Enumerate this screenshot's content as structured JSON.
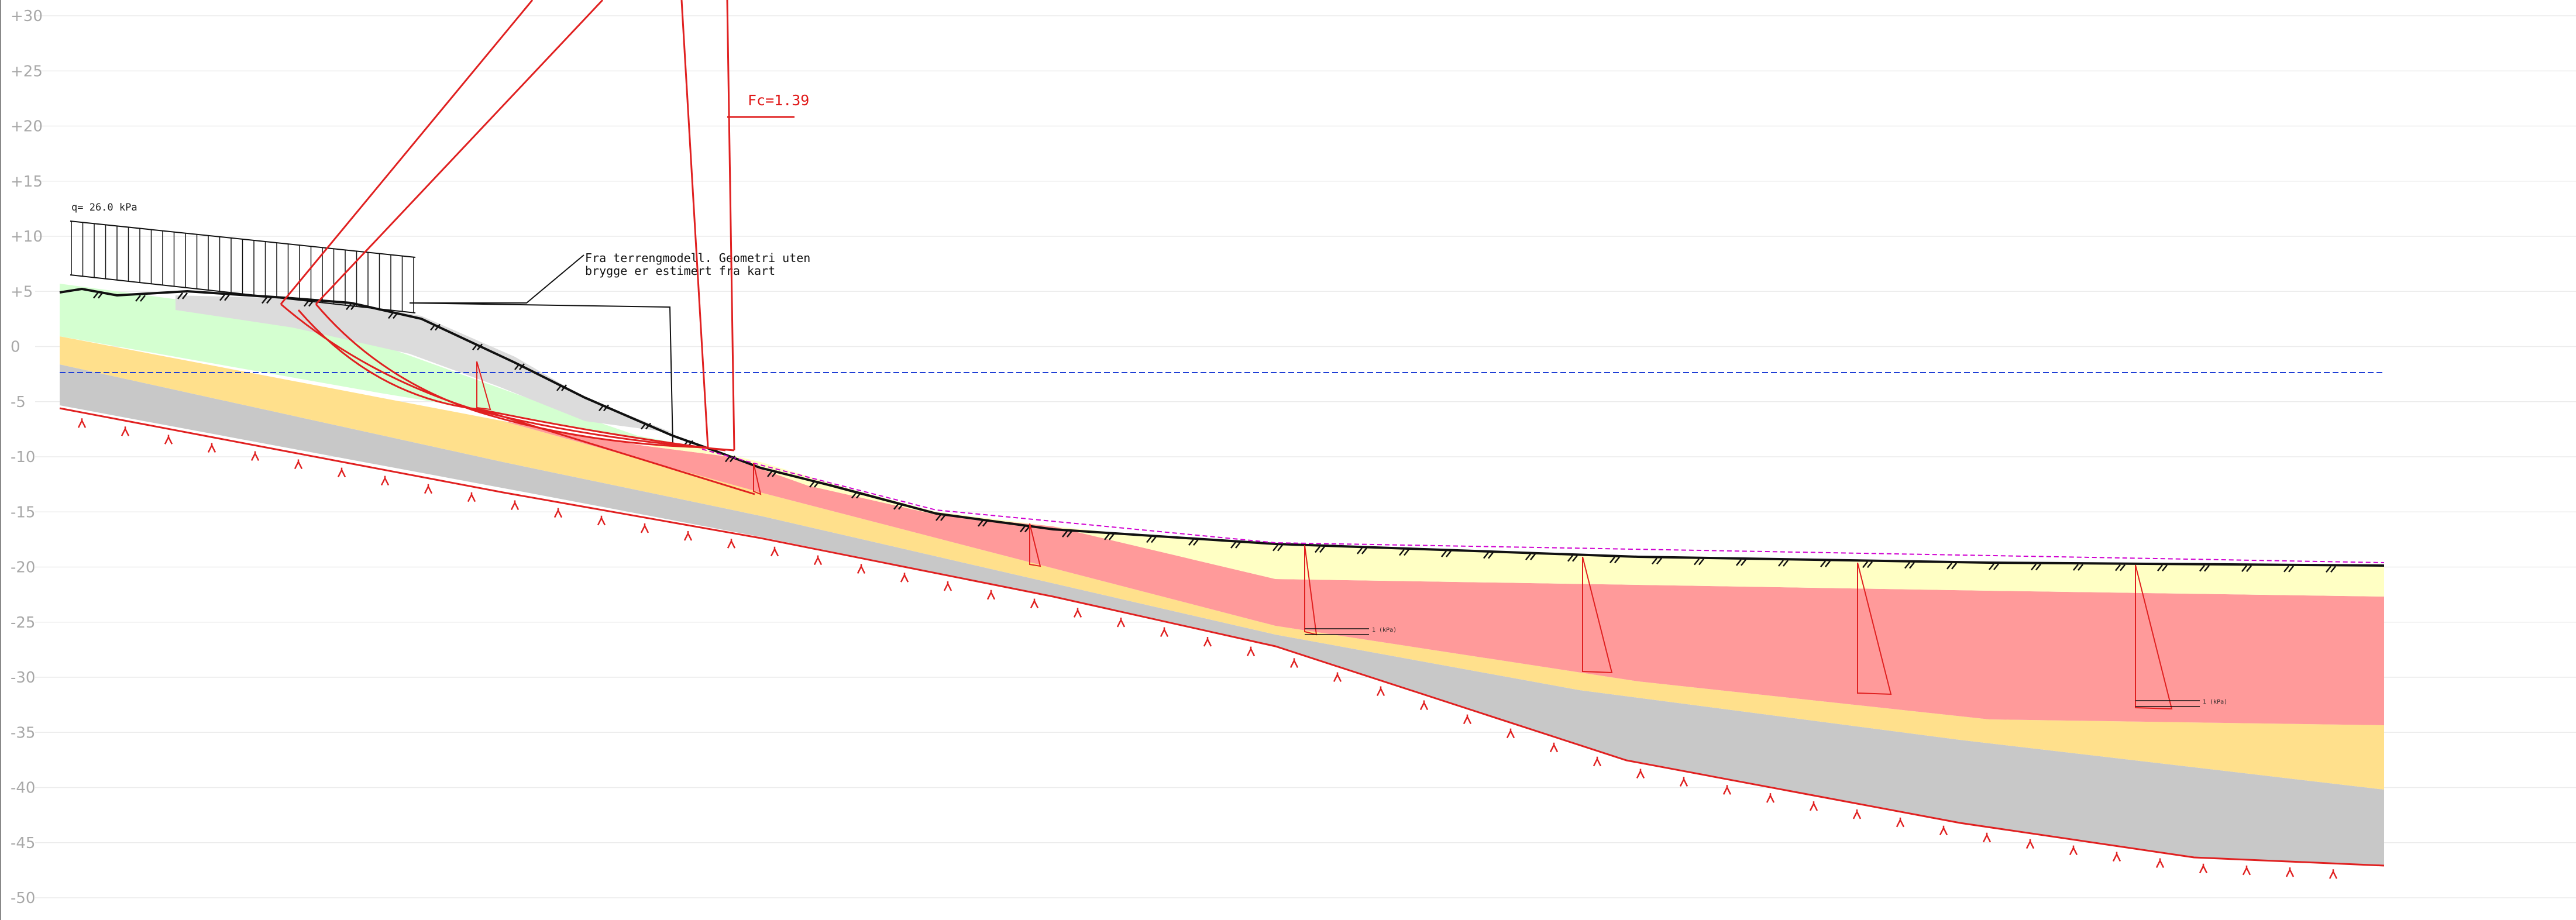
{
  "axis": {
    "labels": [
      "+30",
      "+25",
      "+20",
      "+15",
      "+10",
      "+5",
      "0",
      "-5",
      "-10",
      "-15",
      "-20",
      "-25",
      "-30",
      "-35",
      "-40",
      "-45",
      "-50"
    ],
    "values": [
      30,
      25,
      20,
      15,
      10,
      5,
      0,
      -5,
      -10,
      -15,
      -20,
      -25,
      -30,
      -35,
      -40,
      -45,
      -50
    ]
  },
  "load": {
    "label": "q= 26.0 kPa",
    "value_kpa": 26.0
  },
  "annotation": {
    "line1": "Fra terrengmodell. Geometri uten",
    "line2": "brygge er estimert fra kart"
  },
  "safety_factor": {
    "label": "Fc=1.39",
    "value": 1.39
  },
  "water_level": {
    "elevation": -2.3,
    "color": "#1f3fd6"
  },
  "colors": {
    "clay_quick": "#ff9a9a",
    "dry_crust": "#ffffc4",
    "fill_green": "#d4ffd0",
    "sand_yellow": "#ffe08c",
    "till_grey": "#c8c8c8",
    "bedrock_line": "#e02020",
    "slip_surface": "#e02020"
  },
  "profile_labels": {
    "bottom_tag_1": "1 (kPa)",
    "bottom_tag_2": "1 (kPa)"
  }
}
